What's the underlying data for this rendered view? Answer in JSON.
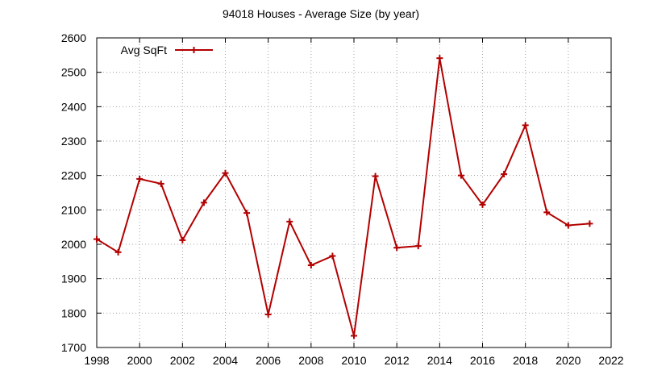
{
  "chart_data": {
    "type": "line",
    "title": "94018 Houses - Average Size (by year)",
    "xlabel": "",
    "ylabel": "",
    "xlim": [
      1998,
      2022
    ],
    "ylim": [
      1700,
      2600
    ],
    "xticks": [
      1998,
      2000,
      2002,
      2004,
      2006,
      2008,
      2010,
      2012,
      2014,
      2016,
      2018,
      2020,
      2022
    ],
    "yticks": [
      1700,
      1800,
      1900,
      2000,
      2100,
      2200,
      2300,
      2400,
      2500,
      2600
    ],
    "grid": true,
    "legend_position": "top-left",
    "series": [
      {
        "name": "Avg SqFt",
        "color": "#b30000",
        "marker": "plus",
        "x": [
          1998,
          1999,
          2000,
          2001,
          2002,
          2003,
          2004,
          2005,
          2006,
          2007,
          2008,
          2009,
          2010,
          2011,
          2012,
          2013,
          2014,
          2015,
          2016,
          2017,
          2018,
          2019,
          2020,
          2021
        ],
        "y": [
          2015,
          1977,
          2190,
          2176,
          2012,
          2121,
          2207,
          2091,
          1796,
          2066,
          1939,
          1966,
          1734,
          2198,
          1990,
          1995,
          2541,
          2200,
          2115,
          2204,
          2346,
          2093,
          2055,
          2060
        ]
      }
    ]
  }
}
